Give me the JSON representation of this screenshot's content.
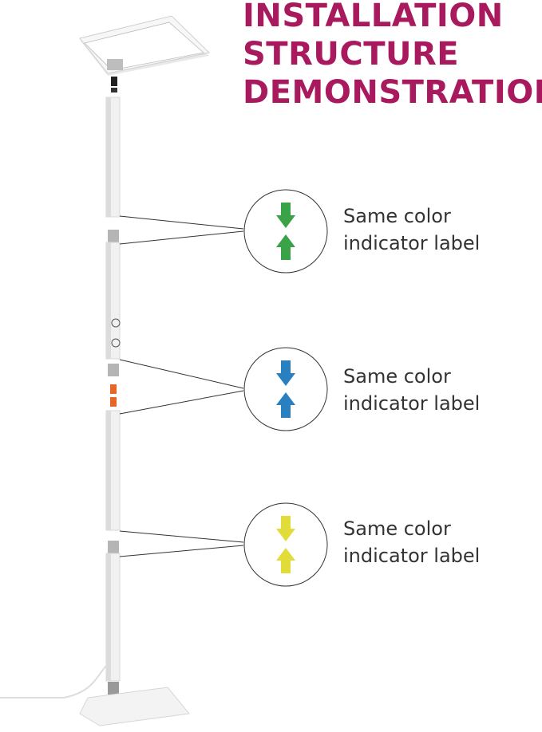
{
  "title": {
    "lines": [
      "INSTALLATION",
      "STRUCTURE",
      "DEMONSTRATION"
    ],
    "color": "#a8195e"
  },
  "callouts": [
    {
      "color_name": "green",
      "color": "#3aa348",
      "text_line1": "Same color",
      "text_line2": "indicator label"
    },
    {
      "color_name": "blue",
      "color": "#2a7fc1",
      "text_line1": "Same color",
      "text_line2": "indicator label"
    },
    {
      "color_name": "yellow",
      "color": "#e2dc3a",
      "text_line1": "Same color",
      "text_line2": "indicator label"
    }
  ],
  "icons": [
    "arrow-down-icon",
    "arrow-up-icon"
  ],
  "connector_color": "#e8662a"
}
